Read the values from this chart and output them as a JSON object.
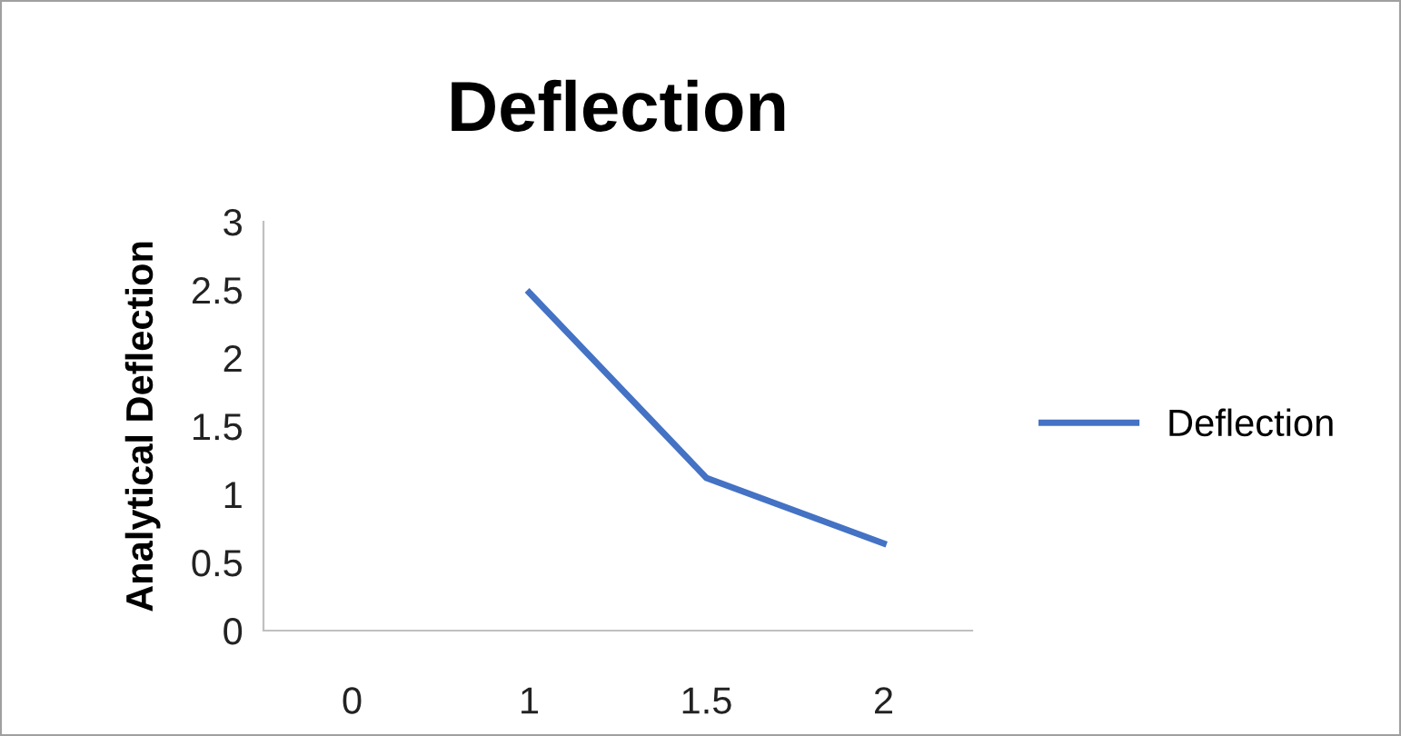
{
  "chart_data": {
    "type": "line",
    "title": "Deflection",
    "ylabel": "Analytical Deflection",
    "categories": [
      "0",
      "1",
      "1.5",
      "2"
    ],
    "series": [
      {
        "name": "Deflection",
        "color": "#4472c4",
        "values": [
          null,
          2.48,
          1.12,
          0.64
        ]
      }
    ],
    "ylim": [
      0,
      3
    ],
    "yticks": [
      0,
      0.5,
      1,
      1.5,
      2,
      2.5,
      3
    ],
    "grid": false,
    "legend": "right",
    "marker": "none",
    "line_style": "solid"
  }
}
